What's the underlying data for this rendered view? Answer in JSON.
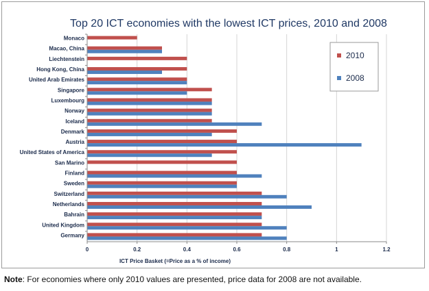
{
  "chart_data": {
    "type": "bar",
    "orientation": "horizontal",
    "title": "Top 20 ICT economies with the lowest ICT prices, 2010 and 2008",
    "xlabel": "ICT Price Basket (=Price as a % of income)",
    "ylabel": "",
    "xlim": [
      0,
      1.2
    ],
    "xticks": [
      "0",
      "0.2",
      "0.4",
      "0.6",
      "0.8",
      "1",
      "1.2"
    ],
    "grid": "vertical",
    "legend_position": "right",
    "categories": [
      "Monaco",
      "Macao, China",
      "Liechtenstein",
      "Hong Kong, China",
      "United Arab Emirates",
      "Singapore",
      "Luxembourg",
      "Norway",
      "Iceland",
      "Denmark",
      "Austria",
      "United States of America",
      "San Marino",
      "Finland",
      "Sweden",
      "Switzerland",
      "Netherlands",
      "Bahrain",
      "United Kingdom",
      "Germany"
    ],
    "series": [
      {
        "name": "2010",
        "color": "#c0504d",
        "values": [
          0.2,
          0.3,
          0.4,
          0.4,
          0.4,
          0.5,
          0.5,
          0.5,
          0.5,
          0.6,
          0.6,
          0.6,
          0.6,
          0.6,
          0.6,
          0.7,
          0.7,
          0.7,
          0.7,
          0.7
        ]
      },
      {
        "name": "2008",
        "color": "#4f81bd",
        "values": [
          null,
          0.3,
          null,
          0.3,
          0.4,
          0.4,
          0.5,
          0.5,
          0.7,
          0.5,
          1.1,
          0.5,
          null,
          0.7,
          0.6,
          0.8,
          0.9,
          0.7,
          0.8,
          0.8
        ]
      }
    ]
  },
  "note": {
    "label": "Note",
    "text": ": For economies where only 2010 values are presented, price data for 2008 are not available."
  }
}
